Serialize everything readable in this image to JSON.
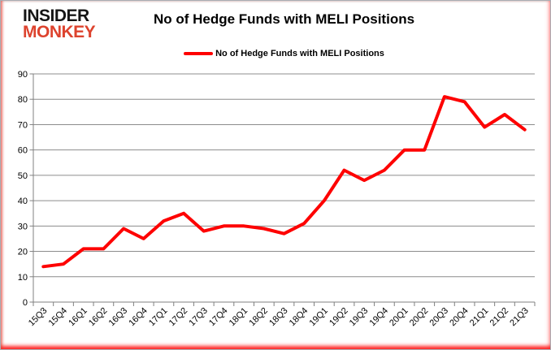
{
  "logo": {
    "line1": "INSIDER",
    "line2": "MONKEY"
  },
  "header": {
    "title": "No of Hedge Funds with MELI Positions"
  },
  "legend": {
    "label": "No of Hedge Funds with MELI Positions"
  },
  "colors": {
    "series_line": "#fe0000",
    "gridline": "#8c8c8c",
    "axis": "#808080",
    "label_text": "#000000",
    "logo_black": "#151515",
    "logo_red": "#dd432e"
  },
  "chart_data": {
    "type": "line",
    "title": "No of Hedge Funds with MELI Positions",
    "xlabel": "",
    "ylabel": "",
    "ylim": [
      0,
      90
    ],
    "ytick_step": 10,
    "grid": true,
    "legend_position": "top",
    "categories": [
      "15Q3",
      "15Q4",
      "16Q1",
      "16Q2",
      "16Q3",
      "16Q4",
      "17Q1",
      "17Q2",
      "17Q3",
      "17Q4",
      "18Q1",
      "18Q2",
      "18Q3",
      "18Q4",
      "19Q1",
      "19Q2",
      "19Q3",
      "19Q4",
      "20Q1",
      "20Q2",
      "20Q3",
      "20Q4",
      "21Q1",
      "21Q2",
      "21Q3"
    ],
    "series": [
      {
        "name": "No of Hedge Funds with MELI Positions",
        "color": "#fe0000",
        "values": [
          14,
          15,
          21,
          21,
          29,
          25,
          32,
          35,
          28,
          30,
          30,
          29,
          27,
          31,
          40,
          52,
          48,
          52,
          60,
          60,
          81,
          79,
          69,
          74,
          68
        ]
      }
    ]
  }
}
